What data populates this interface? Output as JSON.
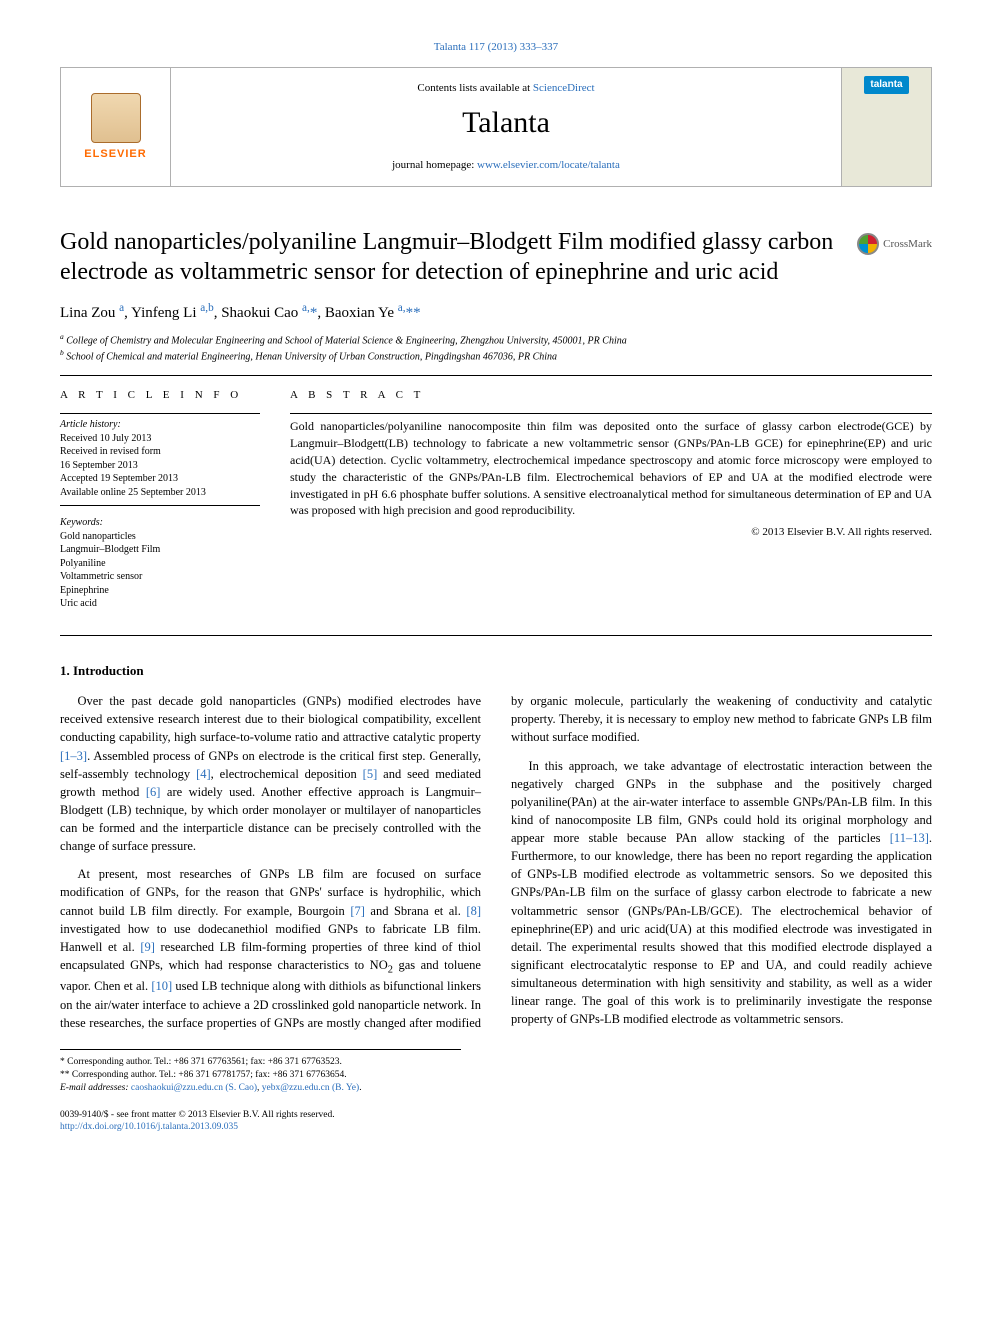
{
  "top_link": {
    "label": "Talanta 117 (2013) 333–337",
    "color": "#2a6ebb"
  },
  "header": {
    "contents_prefix": "Contents lists available at ",
    "contents_link": "ScienceDirect",
    "journal": "Talanta",
    "homepage_prefix": "journal homepage: ",
    "homepage_url": "www.elsevier.com/locate/talanta",
    "publisher_logo_text": "ELSEVIER",
    "cover_badge": "talanta"
  },
  "title": "Gold nanoparticles/polyaniline Langmuir–Blodgett Film modified glassy carbon electrode as voltammetric sensor for detection of epinephrine and uric acid",
  "crossmark_label": "CrossMark",
  "authors_html": "Lina Zou <sup><a>a</a></sup>, Yinfeng Li <sup><a>a,b</a></sup>, Shaokui Cao <sup><a>a,</a></sup><a>*</a>, Baoxian Ye <sup><a>a,</a></sup><a>**</a>",
  "affiliations": [
    "a College of Chemistry and Molecular Engineering and School of Material Science & Engineering, Zhengzhou University, 450001, PR China",
    "b School of Chemical and material Engineering, Henan University of Urban Construction, Pingdingshan 467036, PR China"
  ],
  "article_info": {
    "heading": "A R T I C L E  I N F O",
    "history_label": "Article history:",
    "history": [
      "Received 10 July 2013",
      "Received in revised form",
      "16 September 2013",
      "Accepted 19 September 2013",
      "Available online 25 September 2013"
    ],
    "keywords_label": "Keywords:",
    "keywords": [
      "Gold nanoparticles",
      "Langmuir–Blodgett Film",
      "Polyaniline",
      "Voltammetric sensor",
      "Epinephrine",
      "Uric acid"
    ]
  },
  "abstract": {
    "heading": "A B S T R A C T",
    "text": "Gold nanoparticles/polyaniline nanocomposite thin film was deposited onto the surface of glassy carbon electrode(GCE) by Langmuir–Blodgett(LB) technology to fabricate a new voltammetric sensor (GNPs/PAn-LB GCE) for epinephrine(EP) and uric acid(UA) detection. Cyclic voltammetry, electrochemical impedance spectroscopy and atomic force microscopy were employed to study the characteristic of the GNPs/PAn-LB film. Electrochemical behaviors of EP and UA at the modified electrode were investigated in pH 6.6 phosphate buffer solutions. A sensitive electroanalytical method for simultaneous determination of EP and UA was proposed with high precision and good reproducibility.",
    "copyright": "© 2013 Elsevier B.V. All rights reserved."
  },
  "section1": {
    "heading": "1.  Introduction",
    "paras": [
      "Over the past decade gold nanoparticles (GNPs) modified electrodes have received extensive research interest due to their biological compatibility, excellent conducting capability, high surface-to-volume ratio and attractive catalytic property <a>[1–3]</a>. Assembled process of GNPs on electrode is the critical first step. Generally, self-assembly technology <a>[4]</a>, electrochemical deposition <a>[5]</a> and seed mediated growth method <a>[6]</a> are widely used. Another effective approach is Langmuir–Blodgett (LB) technique, by which order monolayer or multilayer of nanoparticles can be formed and the interparticle distance can be precisely controlled with the change of surface pressure.",
      "At present, most researches of GNPs LB film are focused on surface modification of GNPs, for the reason that GNPs' surface is hydrophilic, which cannot build LB film directly. For example, Bourgoin <a>[7]</a> and Sbrana et al. <a>[8]</a> investigated how to use dodecanethiol modified GNPs to fabricate LB film. Hanwell et al. <a>[9]</a> researched LB film-forming properties of three kind of thiol encapsulated GNPs, which had response characteristics to NO<sub>2</sub> gas and toluene vapor. Chen et al. <a>[10]</a> used LB technique along with dithiols as bifunctional linkers on the air/water interface to achieve a 2D crosslinked gold nanoparticle network. In these researches, the surface properties of GNPs are mostly changed after modified by organic molecule, particularly the weakening of conductivity and catalytic property. Thereby, it is necessary to employ new method to fabricate GNPs LB film without surface modified.",
      "In this approach, we take advantage of electrostatic interaction between the negatively charged GNPs in the subphase and the positively charged polyaniline(PAn) at the air-water interface to assemble GNPs/PAn-LB film. In this kind of nanocomposite LB film, GNPs could hold its original morphology and appear more stable because PAn allow stacking of the particles <a>[11–13]</a>. Furthermore, to our knowledge, there has been no report regarding the application of GNPs-LB modified electrode as voltammetric sensors. So we deposited this GNPs/PAn-LB film on the surface of glassy carbon electrode to fabricate a new voltammetric sensor (GNPs/PAn-LB/GCE). The electrochemical behavior of epinephrine(EP) and uric acid(UA) at this modified electrode was investigated in detail. The experimental results showed that this modified electrode displayed a significant electrocatalytic response to EP and UA, and could readily achieve simultaneous determination with high sensitivity and stability, as well as a wider linear range. The goal of this work is to preliminarily investigate the response property of GNPs-LB modified electrode as voltammetric sensors."
    ]
  },
  "footnotes": {
    "corr1": "* Corresponding author. Tel.: +86 371 67763561; fax: +86 371 67763523.",
    "corr2": "** Corresponding author. Tel.: +86 371 67781757; fax: +86 371 67763654.",
    "email_label": "E-mail addresses: ",
    "email1": "caoshaokui@zzu.edu.cn (S. Cao)",
    "email2": "yebx@zzu.edu.cn (B. Ye)"
  },
  "bottom": {
    "issn": "0039-9140/$ - see front matter © 2013 Elsevier B.V. All rights reserved.",
    "doi": "http://dx.doi.org/10.1016/j.talanta.2013.09.035"
  },
  "colors": {
    "link": "#2a6ebb",
    "elsevier_orange": "#ff6a00",
    "talanta_blue": "#0088cc"
  }
}
